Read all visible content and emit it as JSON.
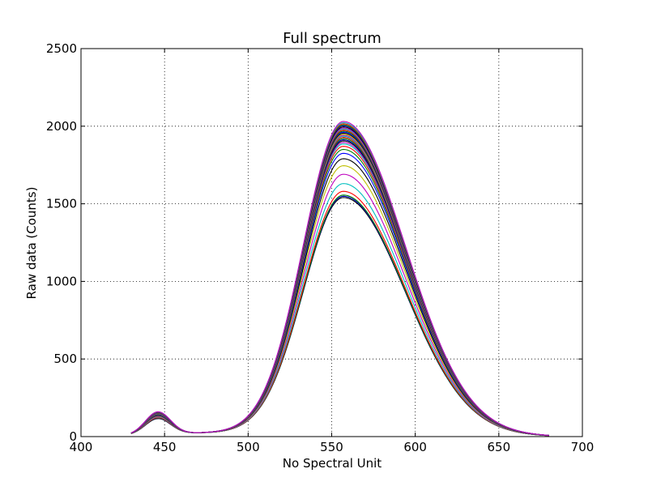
{
  "chart_data": {
    "type": "line",
    "title": "Full spectrum",
    "xlabel": "No Spectral Unit",
    "ylabel": "Raw data (Counts)",
    "xlim": [
      400,
      700
    ],
    "ylim": [
      0,
      2500
    ],
    "xticks": [
      "400",
      "450",
      "500",
      "550",
      "600",
      "650",
      "700"
    ],
    "yticks": [
      "0",
      "500",
      "1000",
      "1500",
      "2000",
      "2500"
    ],
    "grid": true,
    "legend": "none",
    "x_range": [
      430,
      680
    ],
    "peak_center": 557,
    "colors": [
      "#000000",
      "#0000bf",
      "#008000",
      "#ff0000",
      "#00bfbf",
      "#bf00bf",
      "#bfbf00",
      "#000000",
      "#0000ff",
      "#008000",
      "#ff0000",
      "#00bfbf",
      "#bf00bf"
    ],
    "series_peak_values": [
      1540,
      1548,
      1556,
      1580,
      1630,
      1690,
      1745,
      1790,
      1825,
      1850,
      1870,
      1885,
      1895,
      1905,
      1912,
      1920,
      1928,
      1935,
      1942,
      1948,
      1955,
      1962,
      1968,
      1975,
      1982,
      1988,
      1995,
      2002,
      2008,
      2015,
      2022,
      2030
    ],
    "series_blue_peak_values": [
      100,
      102,
      104,
      106,
      110,
      113,
      116,
      119,
      121,
      123,
      125,
      126,
      127,
      128,
      129,
      130,
      131,
      132,
      133,
      134,
      135,
      136,
      137,
      137,
      138,
      139,
      140,
      140,
      141,
      142,
      143,
      144
    ]
  }
}
